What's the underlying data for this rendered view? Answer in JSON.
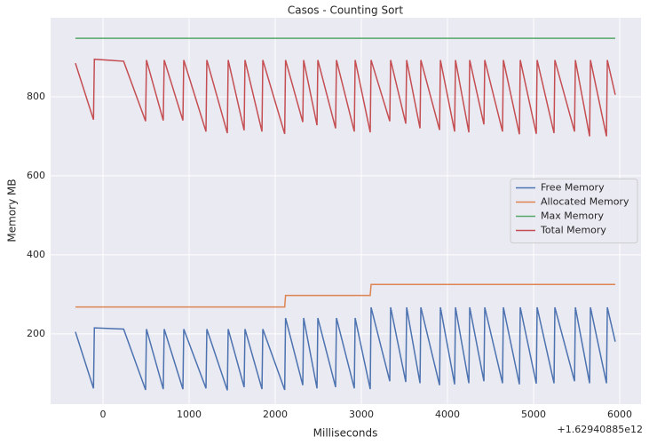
{
  "chart_data": {
    "type": "line",
    "title": "Casos - Counting Sort",
    "x_label": "Milliseconds",
    "y_label": "Memory MB",
    "x_offset_label": "+1.62940885e12",
    "x": [
      -320,
      -110,
      -100,
      240,
      495,
      505,
      700,
      711,
      928,
      938,
      1196,
      1206,
      1444,
      1454,
      1639,
      1649,
      1846,
      1856,
      2110,
      2120,
      2320,
      2330,
      2485,
      2495,
      2701,
      2711,
      2918,
      2928,
      3103,
      3113,
      3330,
      3340,
      3516,
      3526,
      3681,
      3691,
      3908,
      3918,
      4083,
      4093,
      4248,
      4258,
      4423,
      4433,
      4639,
      4649,
      4835,
      4845,
      5031,
      5041,
      5237,
      5247,
      5475,
      5485,
      5650,
      5660,
      5846,
      5856,
      5948
    ],
    "series": [
      {
        "name": "Free Memory",
        "color": "#4c72b0",
        "values": [
          205,
          62,
          215,
          212,
          58,
          212,
          60,
          212,
          60,
          212,
          62,
          212,
          57,
          212,
          65,
          212,
          60,
          212,
          58,
          240,
          70,
          240,
          62,
          240,
          65,
          240,
          62,
          240,
          60,
          267,
          80,
          267,
          78,
          267,
          75,
          267,
          70,
          267,
          72,
          267,
          75,
          267,
          80,
          267,
          75,
          267,
          72,
          267,
          74,
          267,
          75,
          267,
          80,
          267,
          75,
          267,
          75,
          267,
          180
        ]
      },
      {
        "name": "Allocated Memory",
        "color": "#dd8452",
        "values": [
          268,
          268,
          268,
          268,
          268,
          268,
          268,
          268,
          268,
          268,
          268,
          268,
          268,
          268,
          268,
          268,
          268,
          268,
          268,
          297,
          297,
          297,
          297,
          297,
          297,
          297,
          297,
          297,
          297,
          325,
          325,
          325,
          325,
          325,
          325,
          325,
          325,
          325,
          325,
          325,
          325,
          325,
          325,
          325,
          325,
          325,
          325,
          325,
          325,
          325,
          325,
          325,
          325,
          325,
          325,
          325,
          325,
          325,
          325
        ]
      },
      {
        "name": "Max Memory",
        "color": "#55a868",
        "values": [
          948,
          948,
          948,
          948,
          948,
          948,
          948,
          948,
          948,
          948,
          948,
          948,
          948,
          948,
          948,
          948,
          948,
          948,
          948,
          948,
          948,
          948,
          948,
          948,
          948,
          948,
          948,
          948,
          948,
          948,
          948,
          948,
          948,
          948,
          948,
          948,
          948,
          948,
          948,
          948,
          948,
          948,
          948,
          948,
          948,
          948,
          948,
          948,
          948,
          948,
          948,
          948,
          948,
          948,
          948,
          948,
          948,
          948,
          948
        ]
      },
      {
        "name": "Total Memory",
        "color": "#c44e52",
        "values": [
          885,
          742,
          895,
          890,
          738,
          893,
          740,
          893,
          740,
          893,
          712,
          893,
          708,
          893,
          715,
          893,
          712,
          893,
          706,
          893,
          736,
          893,
          728,
          893,
          720,
          893,
          712,
          893,
          710,
          893,
          738,
          893,
          732,
          893,
          720,
          893,
          716,
          893,
          712,
          893,
          710,
          893,
          730,
          893,
          712,
          893,
          705,
          893,
          706,
          893,
          708,
          893,
          712,
          893,
          700,
          893,
          700,
          893,
          805
        ]
      }
    ],
    "xlim": [
      -608,
      6247
    ],
    "xticks": [
      0,
      1000,
      2000,
      3000,
      4000,
      5000,
      6000
    ],
    "ylim": [
      22,
      1000
    ],
    "yticks": [
      200,
      400,
      600,
      800
    ],
    "grid": true,
    "legend": "center right"
  }
}
